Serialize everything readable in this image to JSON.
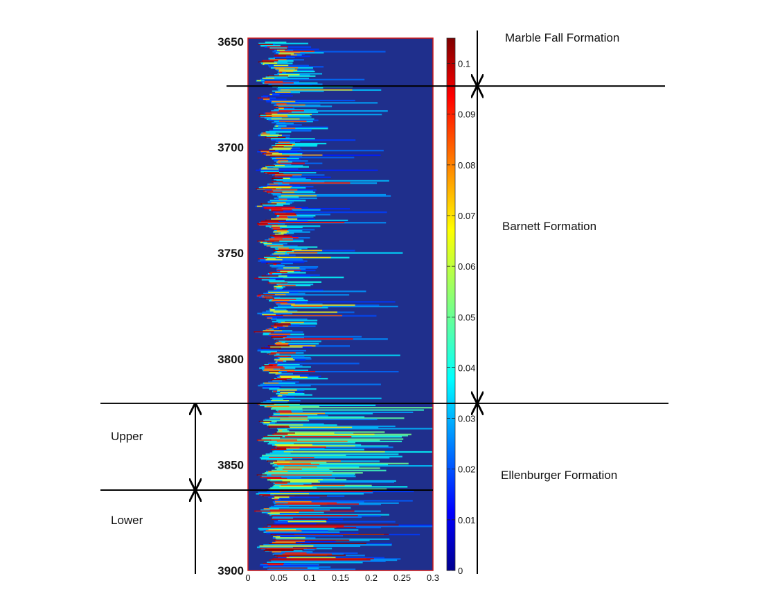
{
  "chart_data": {
    "type": "heatmap",
    "title": "",
    "xlabel": "",
    "ylabel": "",
    "x_range": [
      0,
      0.3
    ],
    "y_range": [
      3650,
      3900
    ],
    "y_reversed": true,
    "x_ticks": [
      "0",
      "0.05",
      "0.1",
      "0.15",
      "0.2",
      "0.25",
      "0.3"
    ],
    "y_ticks": [
      "3650",
      "3700",
      "3750",
      "3800",
      "3850",
      "3900"
    ],
    "colorbar": {
      "colormap": "jet",
      "range": [
        0,
        0.105
      ],
      "ticks": [
        "0",
        "0.01",
        "0.02",
        "0.03",
        "0.04",
        "0.05",
        "0.06",
        "0.07",
        "0.08",
        "0.09",
        "0.1"
      ]
    },
    "colors": {
      "background": "#1f2f8c",
      "plot_border": "#d01818",
      "annotation_line": "#000000"
    },
    "formation_boundaries": [
      3671,
      3821,
      3862
    ],
    "formations": [
      {
        "label": "Marble Fall Formation",
        "from": 3650,
        "to": 3671
      },
      {
        "label": "Barnett Formation",
        "from": 3671,
        "to": 3821
      },
      {
        "label": "Ellenburger Formation",
        "from": 3821,
        "to": 3900
      }
    ],
    "sub_units": [
      {
        "label": "Upper",
        "from": 3821,
        "to": 3862
      },
      {
        "label": "Lower",
        "from": 3862,
        "to": 3900
      }
    ]
  }
}
